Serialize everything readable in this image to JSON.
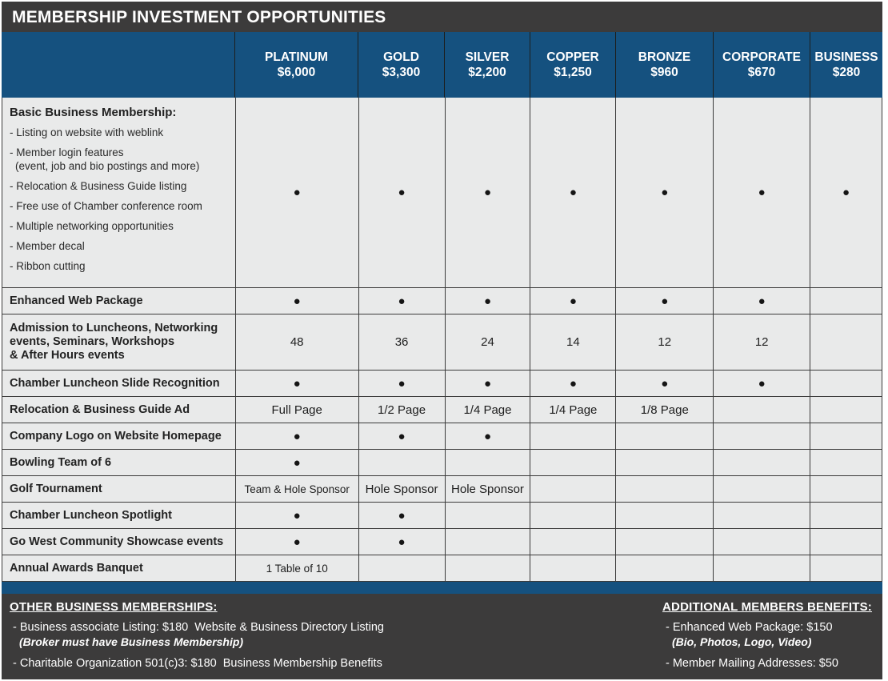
{
  "title": "MEMBERSHIP INVESTMENT OPPORTUNITIES",
  "colors": {
    "header_bar": "#3c3b3b",
    "tier_header_blue": "#15517f",
    "row_background": "#e9eaea",
    "grid_border": "#3b3b3b",
    "text_dark": "#222222",
    "text_white": "#ffffff"
  },
  "columns": [
    {
      "name": "PLATINUM",
      "price": "$6,000"
    },
    {
      "name": "GOLD",
      "price": "$3,300"
    },
    {
      "name": "SILVER",
      "price": "$2,200"
    },
    {
      "name": "COPPER",
      "price": "$1,250"
    },
    {
      "name": "BRONZE",
      "price": "$960"
    },
    {
      "name": "CORPORATE",
      "price": "$670"
    },
    {
      "name": "BUSINESS",
      "price": "$280"
    }
  ],
  "rows": [
    {
      "label": "Basic Business Membership:",
      "sublines": [
        "- Listing on website with weblink",
        "- Member login features",
        "(event, job and bio postings and more)",
        "- Relocation & Business Guide listing",
        "- Free use of Chamber conference room",
        "- Multiple networking opportunities",
        "- Member decal",
        "- Ribbon cutting"
      ],
      "cells": [
        "●",
        "●",
        "●",
        "●",
        "●",
        "●",
        "●"
      ]
    },
    {
      "label": "Enhanced Web Package",
      "cells": [
        "●",
        "●",
        "●",
        "●",
        "●",
        "●",
        ""
      ]
    },
    {
      "label": "Admission to Luncheons, Networking events, Seminars, Workshops & After Hours events",
      "label_lines": [
        "Admission to Luncheons, Networking",
        "events, Seminars, Workshops",
        "& After Hours events"
      ],
      "cells": [
        "48",
        "36",
        "24",
        "14",
        "12",
        "12",
        ""
      ]
    },
    {
      "label": "Chamber Luncheon Slide Recognition",
      "cells": [
        "●",
        "●",
        "●",
        "●",
        "●",
        "●",
        ""
      ]
    },
    {
      "label": "Relocation & Business Guide Ad",
      "cells": [
        "Full Page",
        "1/2 Page",
        "1/4 Page",
        "1/4 Page",
        "1/8 Page",
        "",
        ""
      ]
    },
    {
      "label": "Company Logo on Website Homepage",
      "cells": [
        "●",
        "●",
        "●",
        "",
        "",
        "",
        ""
      ]
    },
    {
      "label": "Bowling Team of 6",
      "cells": [
        "●",
        "",
        "",
        "",
        "",
        "",
        ""
      ]
    },
    {
      "label": "Golf Tournament",
      "cells": [
        "Team & Hole Sponsor",
        "Hole Sponsor",
        "Hole Sponsor",
        "",
        "",
        "",
        ""
      ]
    },
    {
      "label": "Chamber Luncheon Spotlight",
      "cells": [
        "●",
        "●",
        "",
        "",
        "",
        "",
        ""
      ]
    },
    {
      "label": "Go West Community Showcase events",
      "cells": [
        "●",
        "●",
        "",
        "",
        "",
        "",
        ""
      ]
    },
    {
      "label": "Annual Awards Banquet",
      "cells": [
        "1 Table of 10",
        "",
        "",
        "",
        "",
        "",
        ""
      ]
    }
  ],
  "footer": {
    "left": {
      "heading": "OTHER BUSINESS MEMBERSHIPS:",
      "items": [
        {
          "text": "- Business associate Listing: $180  Website & Business Directory Listing",
          "note": "(Broker must have Business Membership)"
        },
        {
          "text": "- Charitable Organization 501(c)3: $180  Business Membership Benefits"
        }
      ]
    },
    "right": {
      "heading": "ADDITIONAL MEMBERS BENEFITS:",
      "items": [
        {
          "text": "- Enhanced Web Package: $150",
          "note": "(Bio, Photos, Logo, Video)"
        },
        {
          "text": "- Member Mailing Addresses: $50"
        }
      ]
    }
  }
}
